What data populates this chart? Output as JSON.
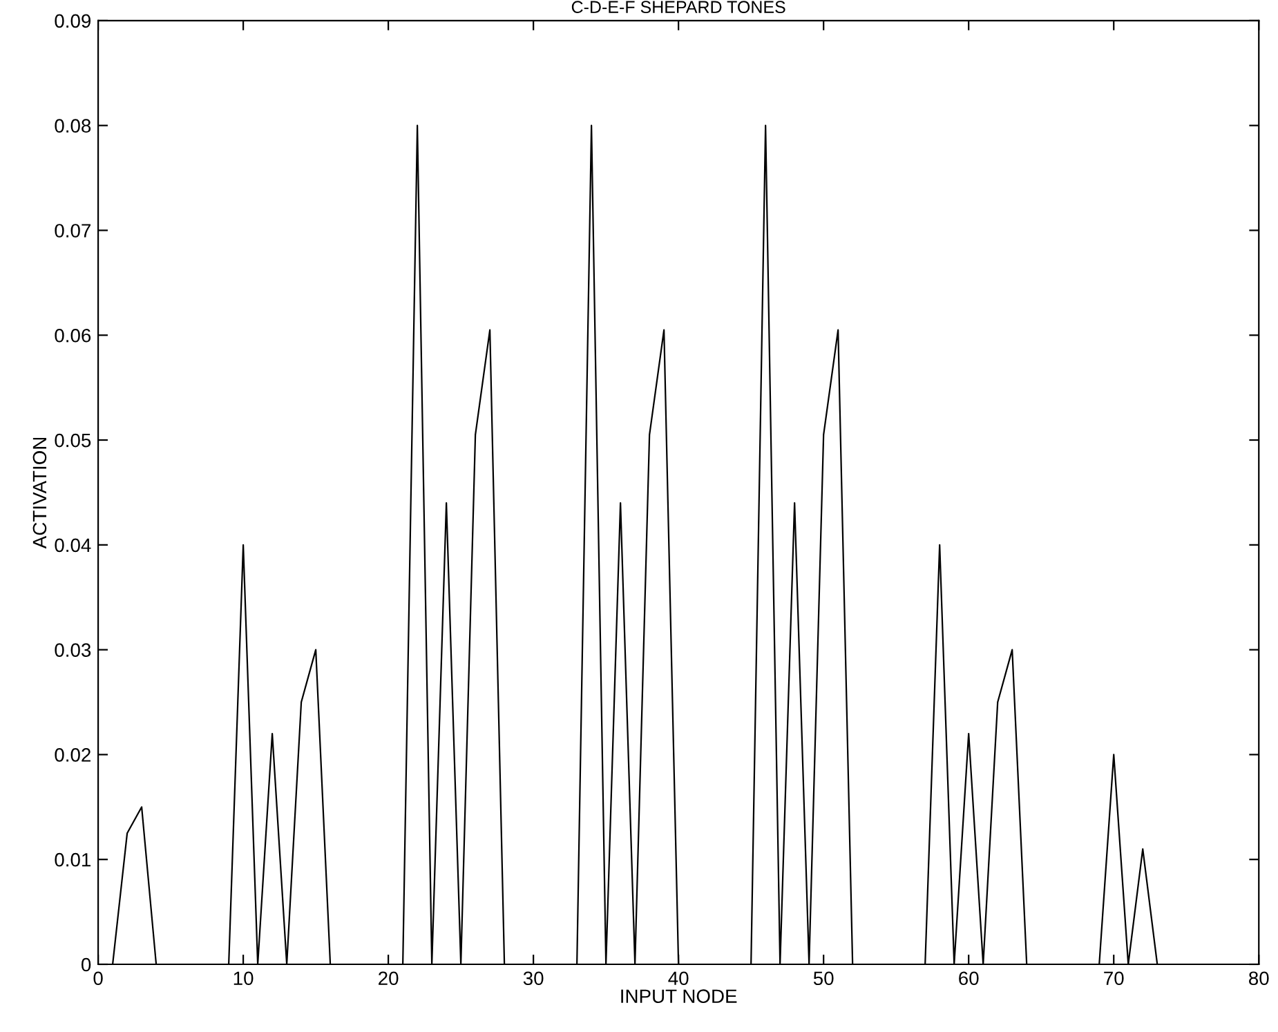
{
  "chart_data": {
    "type": "line",
    "title": "C-D-E-F SHEPARD TONES",
    "xlabel": "INPUT NODE",
    "ylabel": "ACTIVATION",
    "x": [
      1,
      2,
      3,
      4,
      5,
      6,
      7,
      8,
      9,
      10,
      11,
      12,
      13,
      14,
      15,
      16,
      17,
      18,
      19,
      20,
      21,
      22,
      23,
      24,
      25,
      26,
      27,
      28,
      29,
      30,
      31,
      32,
      33,
      34,
      35,
      36,
      37,
      38,
      39,
      40,
      41,
      42,
      43,
      44,
      45,
      46,
      47,
      48,
      49,
      50,
      51,
      52,
      53,
      54,
      55,
      56,
      57,
      58,
      59,
      60,
      61,
      62,
      63,
      64,
      65,
      66,
      67,
      68,
      69,
      70,
      71,
      72,
      73,
      74,
      75,
      76,
      77,
      78,
      79,
      80
    ],
    "series": [
      {
        "color": "#000000",
        "values": [
          0,
          0.0125,
          0.015,
          0,
          0,
          0,
          0,
          0,
          0,
          0.04,
          0,
          0.022,
          0,
          0.025,
          0.03,
          0,
          0,
          0,
          0,
          0,
          0,
          0.08,
          0,
          0.044,
          0,
          0.0505,
          0.0605,
          0,
          0,
          0,
          0,
          0,
          0,
          0.08,
          0,
          0.044,
          0,
          0.0505,
          0.0605,
          0,
          0,
          0,
          0,
          0,
          0,
          0.08,
          0,
          0.044,
          0,
          0.0505,
          0.0605,
          0,
          0,
          0,
          0,
          0,
          0,
          0.04,
          0,
          0.022,
          0,
          0.025,
          0.03,
          0,
          0,
          0,
          0,
          0,
          0,
          0.02,
          0,
          0.011,
          0,
          0,
          0,
          0,
          0,
          0,
          0,
          0
        ]
      }
    ],
    "xlim": [
      0,
      80
    ],
    "xticks": [
      0,
      10,
      20,
      30,
      40,
      50,
      60,
      70,
      80
    ],
    "ylim": [
      0,
      0.09
    ],
    "yticks": [
      0,
      0.01,
      0.02,
      0.03,
      0.04,
      0.05,
      0.06,
      0.07,
      0.08,
      0.09
    ],
    "grid": false,
    "legend": false,
    "marker": "none",
    "line_style": "solid"
  }
}
